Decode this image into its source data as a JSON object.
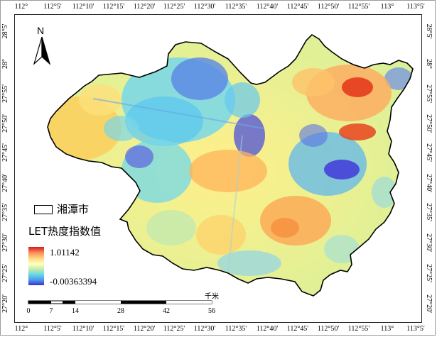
{
  "map": {
    "lon_ticks": [
      "112°",
      "112°5'",
      "112°10'",
      "112°15'",
      "112°20'",
      "112°25'",
      "112°30'",
      "112°35'",
      "112°40'",
      "112°45'",
      "112°50'",
      "112°55'",
      "113°",
      "113°5'"
    ],
    "lat_ticks": [
      "28°5'",
      "28°",
      "27°55'",
      "27°50'",
      "27°45'",
      "27°40'",
      "27°35'",
      "27°30'",
      "27°25'",
      "27°20'"
    ],
    "north_label": "N",
    "legend": {
      "boundary_label": "湘潭市",
      "index_title": "LET热度指数值",
      "max_value": "1.01142",
      "min_value": "-0.00363394"
    },
    "scale": {
      "unit": "千米",
      "labels": [
        "0",
        "7",
        "14",
        "28",
        "42",
        "56"
      ]
    },
    "colors": {
      "high": "#d7191c",
      "mid_high": "#fdae61",
      "mid": "#ffffbf",
      "mid_low": "#66d9e8",
      "low": "#3b2fd8"
    }
  }
}
